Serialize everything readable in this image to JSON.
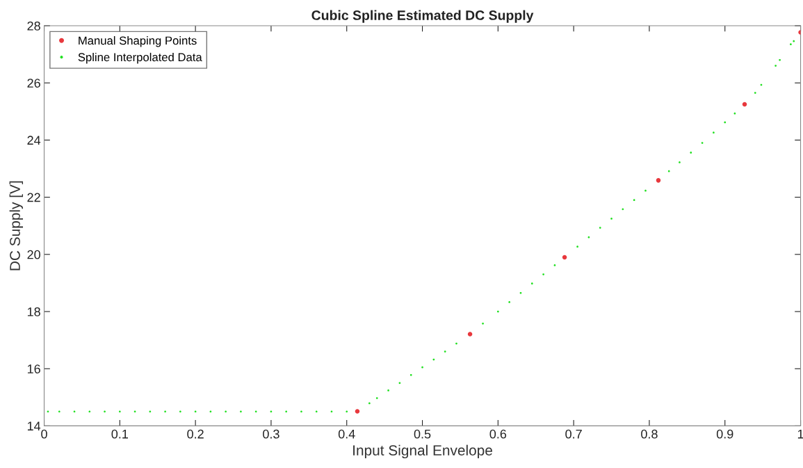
{
  "chart_data": {
    "type": "scatter",
    "title": "Cubic Spline Estimated DC Supply",
    "xlabel": "Input Signal Envelope",
    "ylabel": "DC Supply [V]",
    "xlim": [
      0,
      1
    ],
    "xticks": [
      0,
      0.1,
      0.2,
      0.3,
      0.4,
      0.5,
      0.6,
      0.7,
      0.8,
      0.9,
      1
    ],
    "ylim": [
      14,
      28
    ],
    "yticks": [
      14,
      16,
      18,
      20,
      22,
      24,
      26,
      28
    ],
    "grid": false,
    "legend": "top left",
    "marker": "circle",
    "series": [
      {
        "name": "Manual Shaping Points",
        "color": "#e8383d",
        "x": [
          0.414,
          0.563,
          0.688,
          0.812,
          0.926,
          1.0
        ],
        "values": [
          14.51,
          17.21,
          19.9,
          22.59,
          25.25,
          27.77
        ]
      },
      {
        "name": "Spline Interpolated Data",
        "color": "#22e022",
        "x": [
          0.005,
          0.02,
          0.04,
          0.06,
          0.08,
          0.1,
          0.12,
          0.14,
          0.16,
          0.18,
          0.2,
          0.22,
          0.24,
          0.26,
          0.28,
          0.3,
          0.32,
          0.34,
          0.36,
          0.38,
          0.4,
          0.43,
          0.44,
          0.455,
          0.47,
          0.485,
          0.5,
          0.515,
          0.53,
          0.545,
          0.58,
          0.6,
          0.615,
          0.63,
          0.645,
          0.66,
          0.675,
          0.705,
          0.72,
          0.735,
          0.75,
          0.765,
          0.78,
          0.795,
          0.826,
          0.84,
          0.855,
          0.87,
          0.885,
          0.9,
          0.913,
          0.94,
          0.948,
          0.967,
          0.9725,
          0.987,
          0.991
        ],
        "values": [
          14.5,
          14.5,
          14.5,
          14.5,
          14.5,
          14.5,
          14.5,
          14.5,
          14.5,
          14.5,
          14.5,
          14.5,
          14.5,
          14.5,
          14.5,
          14.5,
          14.5,
          14.5,
          14.5,
          14.5,
          14.5,
          14.79,
          14.97,
          15.24,
          15.5,
          15.78,
          16.05,
          16.32,
          16.6,
          16.88,
          17.58,
          18.0,
          18.33,
          18.65,
          18.98,
          19.3,
          19.62,
          20.27,
          20.6,
          20.93,
          21.25,
          21.58,
          21.9,
          22.23,
          22.91,
          23.22,
          23.56,
          23.9,
          24.26,
          24.62,
          24.93,
          25.65,
          25.93,
          26.6,
          26.8,
          27.35,
          27.46
        ]
      }
    ]
  }
}
